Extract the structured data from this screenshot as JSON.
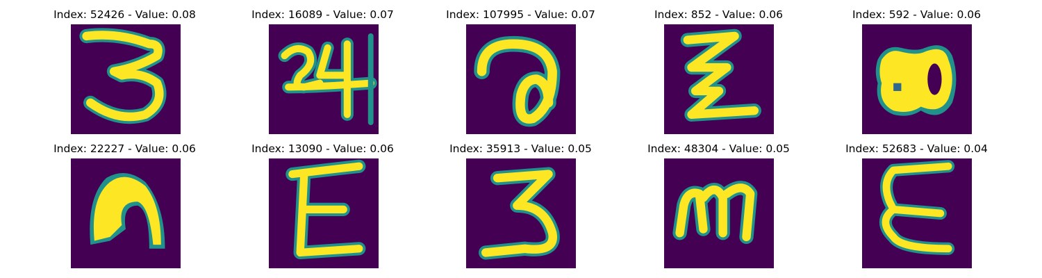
{
  "colors": {
    "background": "#440154",
    "low": "#30678d",
    "mid": "#21918c",
    "high": "#fde725"
  },
  "samples": [
    {
      "title": "Index: 52426 - Value: 0.08",
      "digit": "3-like character"
    },
    {
      "title": "Index: 16089 - Value: 0.07",
      "digit": "24 with cross-stroke"
    },
    {
      "title": "Index: 107995 - Value: 0.07",
      "digit": "a-like looped character"
    },
    {
      "title": "Index: 852 - Value: 0.06",
      "digit": "zig-zag Z character"
    },
    {
      "title": "Index: 592 - Value: 0.06",
      "digit": "80-like blob"
    },
    {
      "title": "Index: 22227 - Value: 0.06",
      "digit": "n-like thick character"
    },
    {
      "title": "Index: 13090 - Value: 0.06",
      "digit": "E-like character"
    },
    {
      "title": "Index: 35913 - Value: 0.05",
      "digit": "3-like character"
    },
    {
      "title": "Index: 48304 - Value: 0.05",
      "digit": "m-like character"
    },
    {
      "title": "Index: 52683 - Value: 0.04",
      "digit": "E-like character"
    }
  ]
}
